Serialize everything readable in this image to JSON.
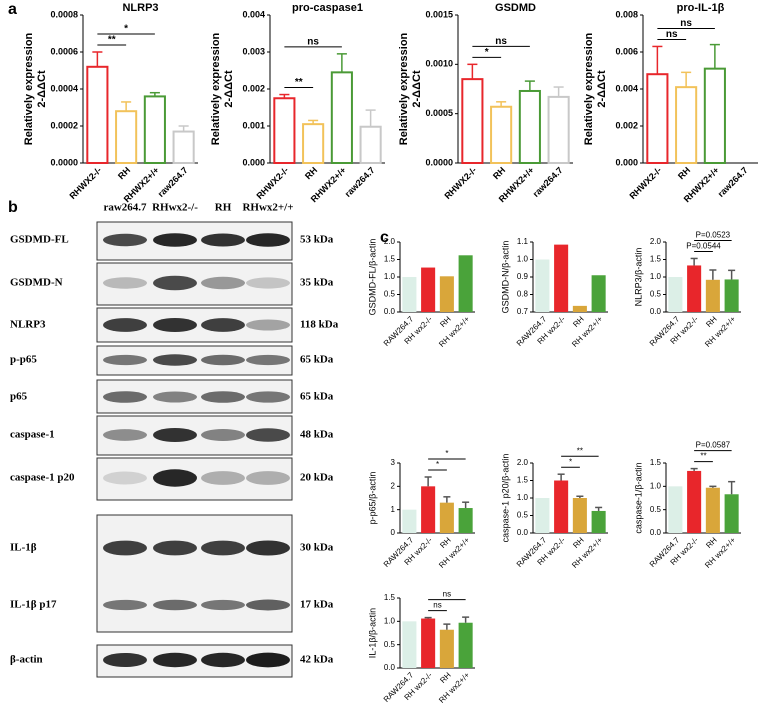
{
  "panel_labels": [
    "a",
    "b",
    "c"
  ],
  "blot": {
    "lanes": [
      "raw264.7",
      "RHwx2-/-",
      "RH",
      "RHwx2+/+"
    ],
    "rows": [
      {
        "label": "GSDMD-FL",
        "size": "53 kDa"
      },
      {
        "label": "GSDMD-N",
        "size": "35 kDa"
      },
      {
        "label": "NLRP3",
        "size": "118 kDa"
      },
      {
        "label": "p-p65",
        "size": "65 kDa"
      },
      {
        "label": "p65",
        "size": "65 kDa"
      },
      {
        "label": "caspase-1",
        "size": "48 kDa"
      },
      {
        "label": "caspase-1 p20",
        "size": "20 kDa"
      },
      {
        "label": "IL-1β",
        "size": "30 kDa"
      },
      {
        "label": "IL-1β p17",
        "size": "17 kDa"
      },
      {
        "label": "β-actin",
        "size": "42 kDa"
      }
    ]
  },
  "chart_data": [
    {
      "type": "bar",
      "title": "NLRP3",
      "y_label": [
        "Relatively expression",
        "2-ΔΔCt"
      ],
      "filled": false,
      "categories": [
        "RHWX2-/-",
        "RH",
        "RHWX2+/+",
        "raw264.7"
      ],
      "values": [
        0.00052,
        0.00028,
        0.00036,
        0.00017
      ],
      "errors": [
        8e-05,
        5e-05,
        2e-05,
        3e-05
      ],
      "colors": [
        "#e8262b",
        "#f2c25a",
        "#4a9a36",
        "#c8c8c8"
      ],
      "ylim": [
        0,
        0.0008
      ],
      "yticks": [
        {
          "value": 0,
          "label": "0.0000"
        },
        0.0002,
        0.0004,
        0.0006,
        0.0008
      ],
      "comparisons": [
        {
          "label": "**",
          "groups": [
            0,
            1
          ]
        },
        {
          "label": "*",
          "groups": [
            0,
            2
          ]
        }
      ]
    },
    {
      "type": "bar",
      "title": "pro-caspase1",
      "y_label": [
        "Relatively expression",
        "2-ΔΔCt"
      ],
      "filled": false,
      "categories": [
        "RHWX2-/-",
        "RH",
        "RHWX2+/+",
        "raw264.7"
      ],
      "values": [
        0.00175,
        0.00105,
        0.00245,
        0.00098
      ],
      "errors": [
        0.0001,
        0.0001,
        0.0005,
        0.00045
      ],
      "colors": [
        "#e8262b",
        "#f2c25a",
        "#4a9a36",
        "#c8c8c8"
      ],
      "ylim": [
        0,
        0.004
      ],
      "yticks": [
        {
          "value": 0,
          "label": "0.000"
        },
        0.001,
        0.002,
        0.003,
        0.004
      ],
      "comparisons": [
        {
          "label": "**",
          "groups": [
            0,
            1
          ]
        },
        {
          "label": "ns",
          "groups": [
            0,
            2
          ]
        }
      ]
    },
    {
      "type": "bar",
      "title": "GSDMD",
      "y_label": [
        "Relatively expression",
        "2-ΔΔCt"
      ],
      "filled": false,
      "categories": [
        "RHWX2-/-",
        "RH",
        "RHWX2+/+",
        "raw264.7"
      ],
      "values": [
        0.00085,
        0.00057,
        0.00073,
        0.00067
      ],
      "errors": [
        0.00015,
        5e-05,
        0.0001,
        0.0001
      ],
      "colors": [
        "#e8262b",
        "#f2c25a",
        "#4a9a36",
        "#c8c8c8"
      ],
      "ylim": [
        0,
        0.0015
      ],
      "yticks": [
        {
          "value": 0,
          "label": "0.0000"
        },
        0.0005,
        {
          "value": 0.001,
          "label": "0.0010"
        },
        0.0015
      ],
      "comparisons": [
        {
          "label": "*",
          "groups": [
            0,
            1
          ]
        },
        {
          "label": "ns",
          "groups": [
            0,
            2
          ]
        }
      ]
    },
    {
      "type": "bar",
      "title": "pro-IL-1β",
      "y_label": [
        "Relatively expression",
        "2-ΔΔCt"
      ],
      "filled": false,
      "categories": [
        "RHWX2-/-",
        "RH",
        "RHWX2+/+",
        "raw264.7"
      ],
      "values": [
        0.0048,
        0.0041,
        0.0051,
        null
      ],
      "errors": [
        0.0015,
        0.0008,
        0.0013,
        null
      ],
      "colors": [
        "#e8262b",
        "#f2c25a",
        "#4a9a36",
        "#c8c8c8"
      ],
      "ylim": [
        0,
        0.008
      ],
      "yticks": [
        {
          "value": 0,
          "label": "0.000"
        },
        0.002,
        0.004,
        0.006,
        0.008
      ],
      "comparisons": [
        {
          "label": "ns",
          "groups": [
            0,
            1
          ]
        },
        {
          "label": "ns",
          "groups": [
            0,
            2
          ]
        }
      ]
    },
    {
      "type": "bar",
      "y_label": "GSDMD-FL/β-actin",
      "filled": true,
      "categories": [
        "RAW264.7",
        "RH wx2-/-",
        "RH",
        "RH wx2+/+"
      ],
      "values": [
        1.0,
        1.27,
        1.02,
        1.62
      ],
      "errors": [
        null,
        null,
        null,
        null
      ],
      "colors": [
        "#dcefe7",
        "#e8262b",
        "#d9a63a",
        "#4aa33a"
      ],
      "ylim": [
        0,
        2.0
      ],
      "yticks": [
        {
          "value": 0,
          "label": "0.0"
        },
        0.5,
        {
          "value": 1,
          "label": "1.0"
        },
        1.5,
        {
          "value": 2,
          "label": "2.0"
        }
      ],
      "comparisons": []
    },
    {
      "type": "bar",
      "y_label": "GSDMD-N/β-actin",
      "filled": true,
      "categories": [
        "RAW264.7",
        "RH wx2-/-",
        "RH",
        "RH wx2+/+"
      ],
      "values": [
        1.0,
        1.085,
        0.735,
        0.91
      ],
      "errors": [
        null,
        null,
        null,
        null
      ],
      "colors": [
        "#dcefe7",
        "#e8262b",
        "#d9a63a",
        "#4aa33a"
      ],
      "ylim": [
        0.7,
        1.1
      ],
      "yticks": [
        0.7,
        0.8,
        0.9,
        {
          "value": 1,
          "label": "1.0"
        },
        1.1
      ],
      "comparisons": []
    },
    {
      "type": "bar",
      "y_label": "NLRP3/β-actin",
      "filled": true,
      "categories": [
        "RAW264.7",
        "RH wx2-/-",
        "RH",
        "RH wx2+/+"
      ],
      "values": [
        1.0,
        1.33,
        0.92,
        0.93
      ],
      "errors": [
        null,
        0.2,
        0.28,
        0.26
      ],
      "colors": [
        "#dcefe7",
        "#e8262b",
        "#d9a63a",
        "#4aa33a"
      ],
      "ylim": [
        0,
        2.0
      ],
      "yticks": [
        {
          "value": 0,
          "label": "0.0"
        },
        0.5,
        {
          "value": 1,
          "label": "1.0"
        },
        1.5,
        {
          "value": 2,
          "label": "2.0"
        }
      ],
      "comparisons": [
        {
          "label": "P=0.0544",
          "groups": [
            1,
            2
          ]
        },
        {
          "label": "P=0.0523",
          "groups": [
            1,
            3
          ]
        }
      ]
    },
    {
      "type": "bar",
      "y_label": "p-p65/β-actin",
      "filled": true,
      "categories": [
        "RAW264.7",
        "RH wx2-/-",
        "RH",
        "RH wx2+/+"
      ],
      "values": [
        1.0,
        2.0,
        1.3,
        1.07
      ],
      "errors": [
        null,
        0.4,
        0.25,
        0.25
      ],
      "colors": [
        "#dcefe7",
        "#e8262b",
        "#d9a63a",
        "#4aa33a"
      ],
      "ylim": [
        0,
        3
      ],
      "yticks": [
        0,
        1,
        2,
        3
      ],
      "comparisons": [
        {
          "label": "*",
          "groups": [
            1,
            2
          ]
        },
        {
          "label": "*",
          "groups": [
            1,
            3
          ]
        }
      ]
    },
    {
      "type": "bar",
      "y_label": "caspase-1 p20/β-actin",
      "filled": true,
      "categories": [
        "RAW264.7",
        "RH wx2-/-",
        "RH",
        "RH wx2+/+"
      ],
      "values": [
        1.0,
        1.5,
        1.0,
        0.63
      ],
      "errors": [
        null,
        0.18,
        0.05,
        0.1
      ],
      "colors": [
        "#dcefe7",
        "#e8262b",
        "#d9a63a",
        "#4aa33a"
      ],
      "ylim": [
        0,
        2.0
      ],
      "yticks": [
        {
          "value": 0,
          "label": "0.0"
        },
        0.5,
        {
          "value": 1,
          "label": "1.0"
        },
        1.5,
        {
          "value": 2,
          "label": "2.0"
        }
      ],
      "comparisons": [
        {
          "label": "*",
          "groups": [
            1,
            2
          ]
        },
        {
          "label": "**",
          "groups": [
            1,
            3
          ]
        }
      ]
    },
    {
      "type": "bar",
      "y_label": "caspase-1/β-actin",
      "filled": true,
      "categories": [
        "RAW264.7",
        "RH wx2-/-",
        "RH",
        "RH wx2+/+"
      ],
      "values": [
        1.0,
        1.33,
        0.97,
        0.83
      ],
      "errors": [
        null,
        0.05,
        0.03,
        0.27
      ],
      "colors": [
        "#dcefe7",
        "#e8262b",
        "#d9a63a",
        "#4aa33a"
      ],
      "ylim": [
        0,
        1.5
      ],
      "yticks": [
        {
          "value": 0,
          "label": "0.0"
        },
        0.5,
        {
          "value": 1,
          "label": "1.0"
        },
        1.5
      ],
      "comparisons": [
        {
          "label": "**",
          "groups": [
            1,
            2
          ]
        },
        {
          "label": "P=0.0587",
          "groups": [
            1,
            3
          ]
        }
      ]
    },
    {
      "type": "bar",
      "y_label": "IL-1β/β-actin",
      "filled": true,
      "categories": [
        "RAW264.7",
        "RH wx2-/-",
        "RH",
        "RH wx2+/+"
      ],
      "values": [
        1.0,
        1.06,
        0.82,
        0.97
      ],
      "errors": [
        null,
        0.02,
        0.12,
        0.12
      ],
      "colors": [
        "#dcefe7",
        "#e8262b",
        "#d9a63a",
        "#4aa33a"
      ],
      "ylim": [
        0,
        1.5
      ],
      "yticks": [
        {
          "value": 0,
          "label": "0.0"
        },
        0.5,
        {
          "value": 1,
          "label": "1.0"
        },
        1.5
      ],
      "comparisons": [
        {
          "label": "ns",
          "groups": [
            1,
            2
          ]
        },
        {
          "label": "ns",
          "groups": [
            1,
            3
          ]
        }
      ]
    }
  ]
}
